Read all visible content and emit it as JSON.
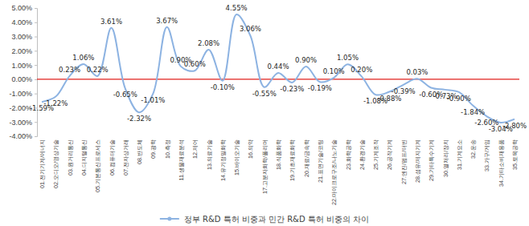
{
  "chart_data": {
    "type": "line",
    "categories": [
      "01.전기기계/에너지",
      "02.오디오/영상기술",
      "03.원거리통신",
      "04.디지털통신",
      "05.기본통신프로세스",
      "06.컴퓨터기술",
      "07.전자상거래",
      "08.반도체",
      "09.광학",
      "10.측정",
      "11.생물재료분석",
      "12.제어",
      "13.의료기술",
      "14.유기정밀화학",
      "15.바이오기술",
      "16.의약",
      "17.고분자화학/폴리머",
      "18.식품화학",
      "19.기초재료화학",
      "20.재료/금속학",
      "21.표면기술/코팅",
      "22.마이크로구조/나노기술",
      "23.화학공학",
      "24.환경기술",
      "25.기계조작",
      "26.공작기계",
      "27.엔진/펌프/터빈",
      "28.섬유/제지기계",
      "29.기타특수기계",
      "30.열처리/장치",
      "31.기계요소",
      "32.운송",
      "33.가구/게임",
      "34.기타소비재용품",
      "35.토목공학"
    ],
    "series": [
      {
        "name": "정부 R&D 특허 비중과 민간 R&D 특허 비중의 차이",
        "color": "#8db3e2",
        "values": [
          -1.59,
          -1.22,
          0.23,
          1.06,
          0.22,
          3.61,
          -0.65,
          -2.32,
          -1.01,
          3.67,
          0.9,
          0.6,
          2.08,
          -0.1,
          4.55,
          3.06,
          -0.55,
          0.44,
          -0.23,
          0.9,
          -0.19,
          0.1,
          1.05,
          0.2,
          -1.08,
          -0.88,
          -0.39,
          0.03,
          -0.6,
          -0.73,
          -0.9,
          -1.84,
          -2.6,
          -3.04,
          -2.8
        ],
        "value_labels": [
          "-1.59%",
          "-1.22%",
          "0.23%",
          "1.06%",
          "0.22%",
          "3.61%",
          "-0.65%",
          "-2.32%",
          "-1.01%",
          "3.67%",
          "0.90%",
          "0.60%",
          "2.08%",
          "-0.10%",
          "4.55%",
          "3.06%",
          "-0.55%",
          "0.44%",
          "-0.23%",
          "0.90%",
          "-0.19%",
          "0.10%",
          "1.05%",
          "0.20%",
          "-1.08%",
          "-0.88%",
          "-0.39%",
          "0.03%",
          "-0.60%",
          "-0.73%",
          "-0.90%",
          "-1.84%",
          "-2.60%",
          "-3.04%",
          "-2.80%"
        ]
      }
    ],
    "ylim": [
      -4,
      5
    ],
    "yticks": [
      {
        "value": -4,
        "label": "-4.00%"
      },
      {
        "value": -3,
        "label": "-3.00%"
      },
      {
        "value": -2,
        "label": "-2.00%"
      },
      {
        "value": -1,
        "label": "-1.00%"
      },
      {
        "value": 0,
        "label": "0.00%"
      },
      {
        "value": 1,
        "label": "1.00%"
      },
      {
        "value": 2,
        "label": "2.00%"
      },
      {
        "value": 3,
        "label": "3.00%"
      },
      {
        "value": 4,
        "label": "4.00%"
      },
      {
        "value": 5,
        "label": "5.00%"
      }
    ],
    "data_labels": true,
    "grid": false,
    "legend": "bottom"
  }
}
